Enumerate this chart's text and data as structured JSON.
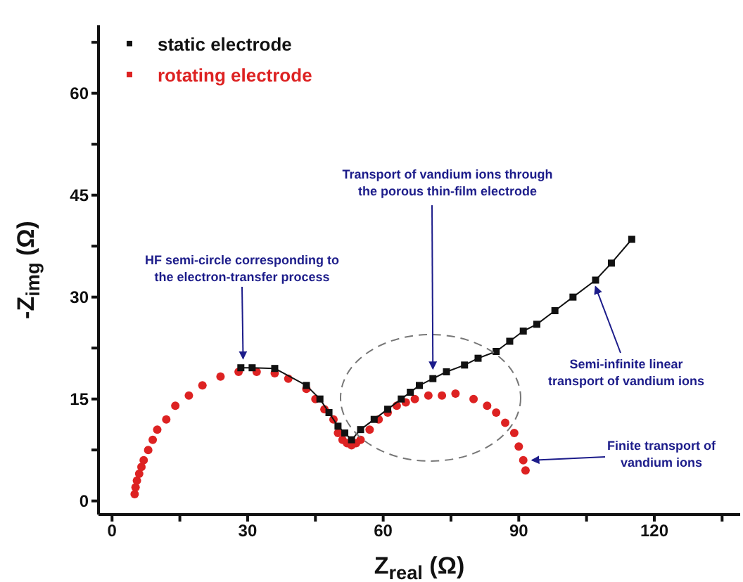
{
  "chart_data": {
    "type": "scatter",
    "xlabel": "Z$_{real}$ (Ω)",
    "ylabel": "-Z$_{img}$ (Ω)",
    "xlim": [
      -3,
      139
    ],
    "ylim": [
      -2,
      70
    ],
    "xticks": [
      0,
      {
        "value": 15,
        "label": null
      },
      30,
      {
        "value": 45,
        "label": null
      },
      60,
      {
        "value": 75,
        "label": null
      },
      90,
      {
        "value": 105,
        "label": null
      },
      120,
      {
        "value": 135,
        "label": null
      }
    ],
    "yticks": [
      0,
      {
        "value": 7.5,
        "label": null
      },
      15,
      {
        "value": 22.5,
        "label": null
      },
      30,
      {
        "value": 37.5,
        "label": null
      },
      45,
      {
        "value": 52.5,
        "label": null
      },
      60,
      {
        "value": 67.5,
        "label": null
      }
    ],
    "grid": false,
    "legend": "top left",
    "series": [
      {
        "name": "static electrode",
        "color": "#111111",
        "type": "line",
        "marker": "square",
        "line_style": "solid",
        "x": [
          28.5,
          31,
          36,
          43,
          46,
          48,
          50,
          51.5,
          53,
          55,
          58,
          61,
          64,
          66,
          68,
          71,
          74,
          78,
          81,
          85,
          88,
          91,
          94,
          98,
          102,
          107,
          110.5,
          115
        ],
        "values": [
          19.6,
          19.6,
          19.5,
          17,
          15,
          13,
          11,
          10,
          9,
          10.5,
          12,
          13.5,
          15,
          16,
          17,
          18,
          19,
          20,
          21,
          22,
          23.5,
          25,
          26,
          28,
          30,
          32.5,
          35,
          38.5
        ]
      },
      {
        "name": "rotating electrode",
        "color": "#dd2222",
        "type": "scatter",
        "marker": "circle",
        "x": [
          5,
          5.2,
          5.5,
          6,
          6.5,
          7,
          8,
          9,
          10,
          12,
          14,
          17,
          20,
          24,
          28,
          32,
          36,
          39,
          43,
          45,
          47,
          49,
          50,
          51,
          52,
          53,
          54,
          55,
          57,
          59,
          61,
          63,
          65,
          67,
          70,
          73,
          76,
          80,
          83,
          85,
          87,
          89,
          90,
          91,
          91.5
        ],
        "values": [
          1,
          2,
          3,
          4,
          5,
          6,
          7.5,
          9,
          10.5,
          12,
          14,
          15.5,
          17,
          18.3,
          19,
          19,
          18.8,
          18,
          16.5,
          15,
          13.5,
          12,
          10,
          9,
          8.5,
          8.2,
          8.5,
          9,
          10.5,
          12,
          13,
          14,
          14.5,
          15,
          15.5,
          15.5,
          15.8,
          15,
          14,
          13,
          11.5,
          10,
          8,
          6,
          4.5
        ]
      }
    ],
    "annotations": [
      {
        "text": "HF semi-circle corresponding to\nthe electron-transfer process",
        "x": 29,
        "y": 21
      },
      {
        "text": "Transport of vandium ions through\nthe porous thin-film electrode",
        "x": 71,
        "y": 19.5
      },
      {
        "text": "Semi-infinite linear\ntransport of vandium ions",
        "x": 107,
        "y": 31.5
      },
      {
        "text": "Finite transport of\nvandium ions",
        "x": 93,
        "y": 6
      }
    ]
  }
}
